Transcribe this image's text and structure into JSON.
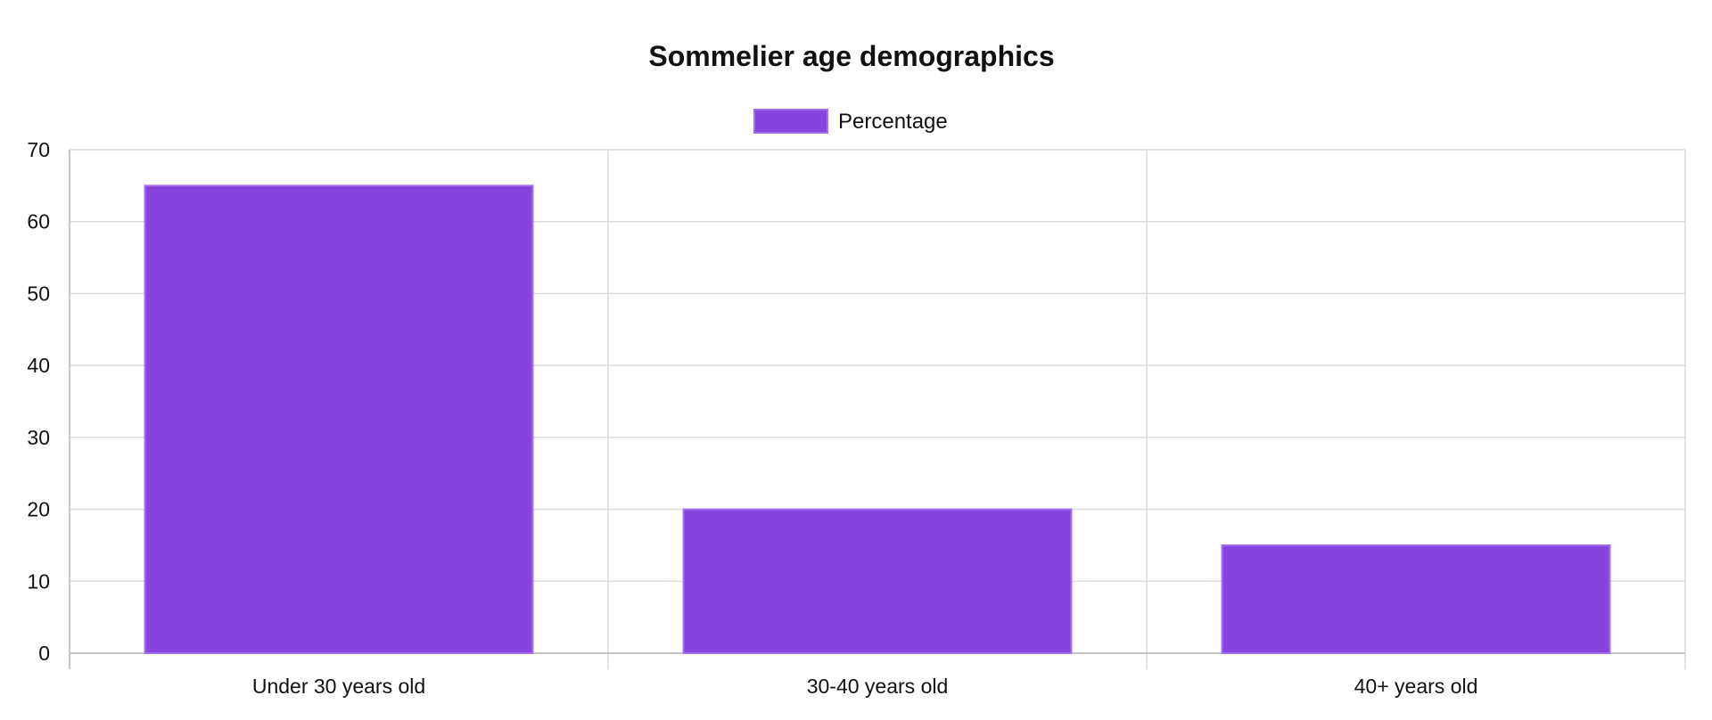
{
  "chart_data": {
    "type": "bar",
    "title": "Sommelier age demographics",
    "categories": [
      "Under 30 years old",
      "30-40 years old",
      "40+ years old"
    ],
    "series": [
      {
        "name": "Percentage",
        "values": [
          65,
          20,
          15
        ],
        "color": "#8842de",
        "border_color": "#a46cf0"
      }
    ],
    "ylim": [
      0,
      70
    ],
    "ytick_step": 10,
    "xlabel": "",
    "ylabel": "",
    "grid": true,
    "legend_position": "top-center"
  }
}
